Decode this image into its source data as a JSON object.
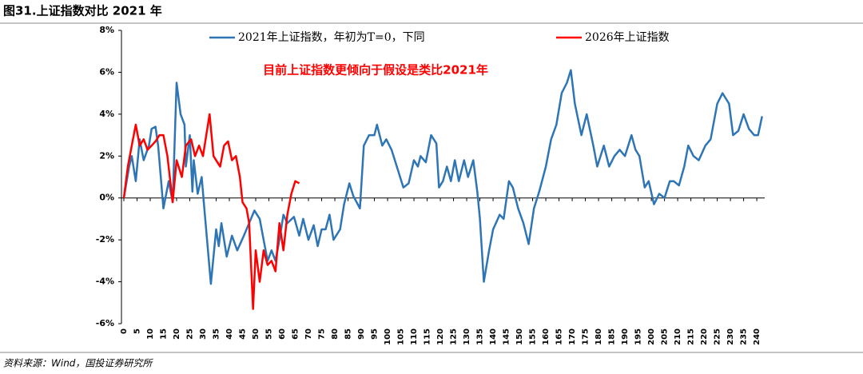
{
  "chart_data": {
    "type": "line",
    "title": "图31.上证指数对比 2021 年",
    "source": "资料来源：Wind，国投证券研究所",
    "annotation": "目前上证指数更倾向于假设是类比2021年",
    "xlim": [
      0,
      243
    ],
    "xticks": [
      0,
      5,
      10,
      15,
      20,
      25,
      30,
      35,
      40,
      45,
      50,
      55,
      60,
      65,
      70,
      75,
      80,
      85,
      90,
      95,
      100,
      105,
      110,
      115,
      120,
      125,
      130,
      135,
      140,
      145,
      150,
      155,
      160,
      165,
      170,
      175,
      180,
      185,
      190,
      195,
      200,
      205,
      210,
      215,
      220,
      225,
      230,
      235,
      240
    ],
    "ylim": [
      -6,
      8
    ],
    "yticks": [
      {
        "value": -6,
        "label": "-6%"
      },
      {
        "value": -4,
        "label": "-4%"
      },
      {
        "value": -2,
        "label": "-2%"
      },
      {
        "value": 0,
        "label": "0%"
      },
      {
        "value": 2,
        "label": "2%"
      },
      {
        "value": 4,
        "label": "4%"
      },
      {
        "value": 6,
        "label": "6%"
      },
      {
        "value": 8,
        "label": "8%"
      }
    ],
    "series": [
      {
        "name": "2021年上证指数，年初为T=0，下同",
        "color": "#2e75b6",
        "x": [
          0,
          2,
          3,
          4.5,
          6,
          7.5,
          9.5,
          10.5,
          12,
          13,
          15,
          17,
          18.5,
          20,
          21.5,
          23,
          23.5,
          25,
          26,
          26.5,
          28,
          29.5,
          30.5,
          33,
          35,
          36,
          37,
          39,
          41,
          43,
          45.5,
          47.5,
          49.5,
          51.5,
          53,
          54.5,
          56,
          57.5,
          59,
          60.5,
          62,
          64.5,
          66.5,
          68,
          70,
          72,
          73.5,
          75,
          76.5,
          78,
          79.5,
          82,
          83.5,
          85.5,
          87,
          89.5,
          91,
          93,
          95,
          96,
          98,
          99.5,
          101.5,
          103.5,
          106,
          108,
          110,
          111.5,
          112.5,
          114.5,
          116.5,
          118.5,
          119.5,
          121,
          122.5,
          124,
          125.5,
          127,
          129,
          130.5,
          132.5,
          134,
          135,
          136.5,
          138.5,
          140,
          142.5,
          144,
          146,
          147.5,
          149.5,
          151.5,
          153.5,
          155.5,
          157.5,
          160,
          162,
          164,
          166,
          168,
          169.5,
          171,
          173.5,
          175.5,
          178,
          179.5,
          182,
          184,
          186,
          188,
          190,
          192.5,
          194,
          195.5,
          197.5,
          199,
          201,
          203,
          205,
          207,
          208.5,
          210.5,
          212.5,
          214,
          216,
          218,
          220.5,
          222.5,
          225,
          227,
          229.5,
          231,
          233,
          235,
          237,
          239,
          240.5,
          242
        ],
        "values": [
          0,
          1.5,
          2.0,
          0.8,
          2.8,
          1.8,
          2.5,
          3.3,
          3.4,
          2.5,
          -0.5,
          0.8,
          -0.2,
          5.5,
          4.0,
          3.5,
          1.5,
          3.0,
          0.3,
          1.8,
          0.2,
          1.0,
          -0.5,
          -4.1,
          -1.5,
          -2.3,
          -1.2,
          -2.8,
          -1.8,
          -2.5,
          -1.8,
          -1.2,
          -0.6,
          -1.0,
          -2.0,
          -3.0,
          -2.5,
          -3.0,
          -2.0,
          -0.8,
          -1.2,
          -0.9,
          -1.8,
          -1.0,
          -2.0,
          -1.3,
          -2.3,
          -1.5,
          -1.5,
          -0.8,
          -2.0,
          -1.5,
          -0.3,
          0.7,
          0.1,
          -0.5,
          2.5,
          3.0,
          3.0,
          3.5,
          2.5,
          2.8,
          2.3,
          1.5,
          0.5,
          0.7,
          1.8,
          1.5,
          2.0,
          1.7,
          3.0,
          2.6,
          0.5,
          0.8,
          1.5,
          0.8,
          1.8,
          0.8,
          1.8,
          1.0,
          1.8,
          0.3,
          -1.0,
          -4.0,
          -2.5,
          -1.5,
          -0.8,
          -1.0,
          0.8,
          0.5,
          -0.5,
          -1.2,
          -2.2,
          -0.5,
          0.3,
          1.5,
          2.8,
          3.5,
          5.0,
          5.5,
          6.1,
          4.5,
          3.0,
          4.0,
          2.5,
          1.5,
          2.5,
          1.5,
          2.0,
          2.3,
          2.0,
          3.0,
          2.3,
          2.0,
          0.5,
          0.8,
          -0.3,
          0.2,
          0.0,
          0.8,
          0.8,
          0.6,
          1.5,
          2.5,
          2.0,
          1.8,
          2.5,
          2.8,
          4.5,
          5.0,
          4.5,
          3.0,
          3.2,
          4.0,
          3.3,
          3.0,
          3.0,
          3.9
        ]
      },
      {
        "name": "2026年上证指数",
        "color": "#ff0000",
        "x": [
          0,
          1.5,
          3,
          4.5,
          6,
          7.5,
          9,
          10.5,
          12,
          13.5,
          15,
          16.5,
          18.5,
          20,
          22,
          23.5,
          25.5,
          27,
          28.5,
          30,
          32.5,
          34,
          36.5,
          38,
          39.5,
          41,
          42.5,
          44,
          45,
          46.5,
          47.5,
          49,
          50,
          51.5,
          53,
          54.5,
          56,
          57.5,
          59,
          60.5,
          62,
          63.5,
          65,
          66.5
        ],
        "values": [
          0,
          1.5,
          2.5,
          3.5,
          2.5,
          2.8,
          2.3,
          2.5,
          2.7,
          3.0,
          3.0,
          2.0,
          -0.2,
          1.8,
          1.0,
          2.5,
          2.8,
          2.0,
          2.5,
          2.0,
          4.0,
          2.0,
          1.5,
          2.5,
          2.7,
          1.8,
          2.0,
          1.0,
          -0.2,
          -0.5,
          -1.2,
          -5.3,
          -2.5,
          -4.0,
          -2.5,
          -3.2,
          -3.0,
          -3.5,
          -1.2,
          -2.5,
          -0.8,
          0.2,
          0.8,
          0.7
        ]
      }
    ]
  }
}
